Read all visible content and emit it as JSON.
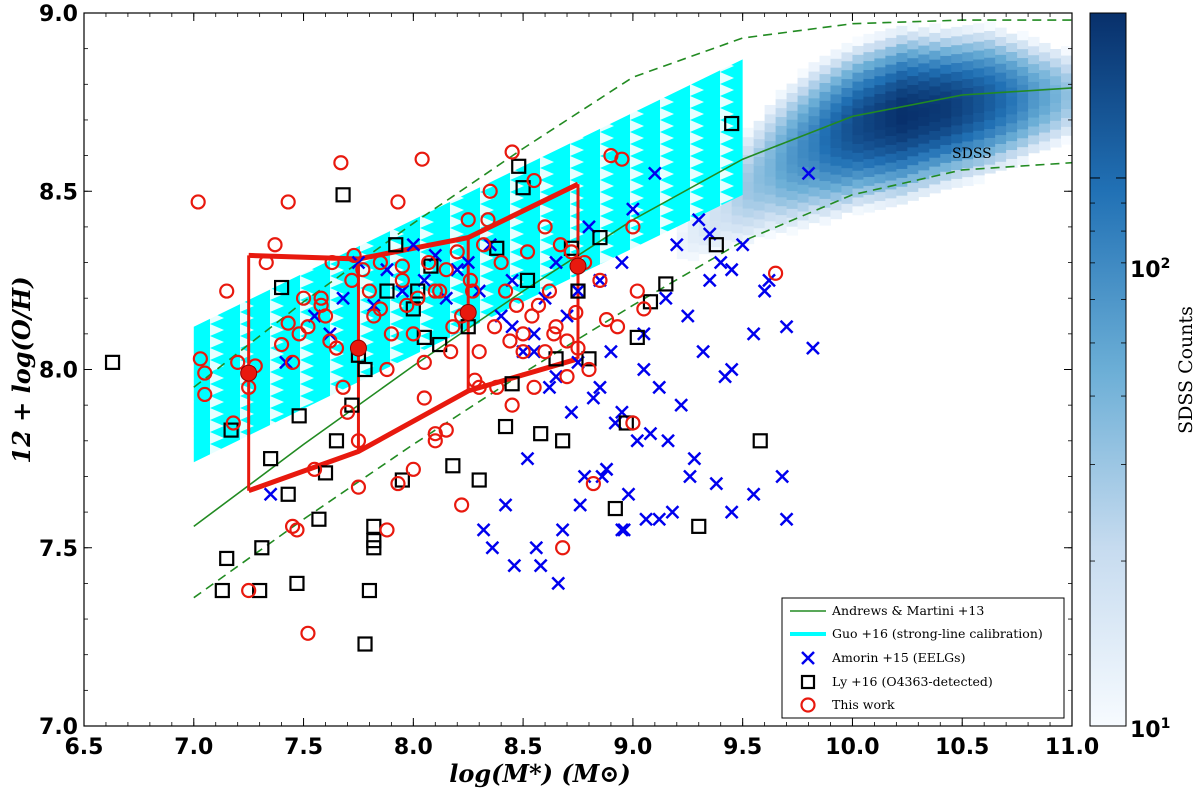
{
  "chart_data": {
    "type": "scatter",
    "xlabel": "log(M*) (M⊙)",
    "ylabel": "12 + log(O/H)",
    "xlim": [
      6.5,
      11.0
    ],
    "ylim": [
      7.0,
      9.0
    ],
    "x_ticks": [
      "6.5",
      "7.0",
      "7.5",
      "8.0",
      "8.5",
      "9.0",
      "9.5",
      "10.0",
      "10.5",
      "11.0"
    ],
    "y_ticks": [
      "7.0",
      "7.5",
      "8.0",
      "8.5",
      "9.0"
    ],
    "annotation": "SDSS",
    "colorbar": {
      "label": "SDSS Counts",
      "scale": "log",
      "range": [
        10,
        200
      ],
      "ticks": [
        {
          "value": 10,
          "base": "10",
          "exp": "1"
        },
        {
          "value": 100,
          "base": "10",
          "exp": "2"
        }
      ],
      "color_low": "#f7fbff",
      "color_high": "#08306b"
    },
    "legend": {
      "placement": "lower-right",
      "entries": [
        {
          "label": "Andrews & Martini +13",
          "marker": "green-line"
        },
        {
          "label": "Guo +16 (strong-line calibration)",
          "marker": "cyan-line"
        },
        {
          "label": "Amorin +15 (EELGs)",
          "marker": "blue-x"
        },
        {
          "label": "Ly +16 (O4363-detected)",
          "marker": "black-square"
        },
        {
          "label": "This work",
          "marker": "red-circle"
        }
      ]
    },
    "colors": {
      "andrews": "#228b22",
      "guo": "#00ffff",
      "amorin": "#0000ee",
      "ly": "#000000",
      "this_work": "#e8190e"
    },
    "andrews_martini_curve": {
      "x": [
        7.0,
        7.5,
        8.0,
        8.5,
        9.0,
        9.5,
        10.0,
        10.5,
        11.0
      ],
      "center": [
        7.56,
        7.79,
        8.01,
        8.22,
        8.42,
        8.59,
        8.71,
        8.77,
        8.79
      ],
      "upper": [
        7.95,
        8.19,
        8.41,
        8.62,
        8.82,
        8.93,
        8.97,
        8.98,
        8.98
      ],
      "lower": [
        7.36,
        7.58,
        7.79,
        7.99,
        8.18,
        8.36,
        8.49,
        8.56,
        8.58
      ]
    },
    "guo_band": {
      "x": [
        7.0,
        9.5
      ],
      "upper": [
        8.12,
        8.87
      ],
      "lower": [
        7.74,
        8.49
      ]
    },
    "sdss_density": {
      "x": [
        9.2,
        9.4,
        9.6,
        9.8,
        10.0,
        10.2,
        10.4,
        10.6,
        10.8,
        11.0
      ],
      "center": [
        8.35,
        8.45,
        8.55,
        8.62,
        8.67,
        8.7,
        8.72,
        8.74,
        8.75,
        8.76
      ],
      "halfwidth": [
        0.12,
        0.13,
        0.14,
        0.14,
        0.13,
        0.13,
        0.12,
        0.12,
        0.11,
        0.1
      ],
      "peak_count": [
        12,
        20,
        40,
        80,
        150,
        200,
        180,
        120,
        60,
        25
      ]
    },
    "binned_this_work": {
      "x": [
        7.25,
        7.75,
        8.25,
        8.75
      ],
      "y": [
        7.99,
        8.06,
        8.16,
        8.29
      ],
      "upper": [
        8.32,
        8.31,
        8.37,
        8.52
      ],
      "lower": [
        7.66,
        7.77,
        7.94,
        8.03
      ]
    },
    "series": [
      {
        "name": "Amorin +15 (EELGs)",
        "marker": "x",
        "x": [
          7.35,
          7.42,
          7.55,
          7.62,
          7.68,
          7.75,
          7.82,
          7.88,
          7.95,
          8.0,
          8.05,
          8.1,
          8.15,
          8.2,
          8.25,
          8.3,
          8.35,
          8.4,
          8.45,
          8.5,
          8.55,
          8.6,
          8.65,
          8.7,
          8.75,
          8.8,
          8.85,
          8.9,
          8.95,
          9.0,
          9.05,
          9.1,
          9.15,
          9.2,
          9.25,
          9.3,
          9.35,
          9.4,
          9.45,
          9.5,
          9.55,
          9.6,
          9.7,
          9.8,
          8.62,
          8.72,
          8.82,
          8.92,
          9.02,
          9.12,
          9.22,
          9.32,
          9.42,
          8.52,
          8.42,
          8.32,
          8.58,
          8.68,
          8.78,
          8.88,
          8.98,
          9.08,
          9.18,
          9.28,
          9.38,
          8.46,
          8.56,
          8.66,
          8.76,
          8.86,
          8.96,
          9.06,
          9.16,
          9.26,
          8.36,
          8.45,
          8.55,
          8.65,
          8.75,
          8.85,
          8.95,
          9.05,
          9.35,
          9.45,
          9.62,
          9.68
        ],
        "y": [
          7.65,
          8.02,
          8.15,
          8.1,
          8.2,
          8.3,
          8.18,
          8.28,
          8.22,
          8.35,
          8.25,
          8.32,
          8.2,
          8.28,
          8.3,
          8.22,
          8.35,
          8.15,
          8.25,
          8.05,
          8.1,
          8.2,
          8.3,
          8.15,
          8.22,
          8.4,
          8.25,
          8.05,
          8.3,
          8.45,
          8.1,
          8.55,
          8.2,
          8.35,
          8.15,
          8.42,
          8.25,
          8.3,
          8.0,
          8.35,
          8.1,
          8.22,
          8.12,
          8.55,
          7.95,
          7.88,
          7.92,
          7.85,
          7.8,
          7.95,
          7.9,
          8.05,
          7.98,
          7.75,
          7.62,
          7.55,
          7.45,
          7.55,
          7.7,
          7.72,
          7.65,
          7.82,
          7.6,
          7.75,
          7.68,
          7.45,
          7.5,
          7.4,
          7.62,
          7.7,
          7.55,
          7.58,
          7.8,
          7.7,
          7.5,
          8.12,
          8.05,
          7.98,
          8.02,
          7.95,
          7.88,
          8.0,
          8.38,
          8.28,
          8.25,
          7.7
        ],
        "x2": [
          9.82,
          9.7,
          9.12,
          8.95,
          9.45,
          9.55
        ],
        "y2": [
          8.06,
          7.58,
          7.58,
          7.55,
          7.6,
          7.65
        ]
      },
      {
        "name": "Ly +16 (O4363-detected)",
        "marker": "square",
        "x": [
          6.63,
          7.13,
          7.15,
          7.17,
          7.3,
          7.31,
          7.35,
          7.4,
          7.43,
          7.47,
          7.48,
          7.57,
          7.6,
          7.65,
          7.68,
          7.72,
          7.75,
          7.78,
          7.8,
          7.82,
          7.82,
          7.82,
          7.88,
          7.92,
          7.95,
          8.0,
          8.02,
          8.05,
          8.08,
          8.12,
          8.18,
          8.25,
          8.3,
          8.38,
          8.42,
          8.45,
          8.48,
          8.52,
          8.58,
          8.65,
          8.68,
          8.72,
          8.75,
          8.8,
          8.85,
          8.92,
          8.97,
          9.02,
          9.08,
          9.15,
          9.3,
          9.38,
          9.45,
          9.58,
          8.5,
          7.78
        ],
        "y": [
          8.02,
          7.38,
          7.47,
          7.83,
          7.38,
          7.5,
          7.75,
          8.23,
          7.65,
          7.4,
          7.87,
          7.58,
          7.71,
          7.8,
          8.49,
          7.9,
          8.04,
          8.0,
          7.38,
          7.5,
          7.52,
          7.56,
          8.22,
          8.35,
          7.69,
          8.17,
          8.22,
          8.09,
          8.29,
          8.07,
          7.73,
          8.12,
          7.69,
          8.34,
          7.84,
          7.96,
          8.57,
          8.25,
          7.82,
          8.03,
          7.8,
          8.34,
          8.22,
          8.03,
          8.37,
          7.61,
          7.85,
          8.09,
          8.19,
          8.24,
          7.56,
          8.35,
          8.69,
          7.8,
          8.51,
          7.23
        ]
      },
      {
        "name": "This work",
        "marker": "circle",
        "x": [
          7.02,
          7.03,
          7.05,
          7.15,
          7.2,
          7.25,
          7.28,
          7.33,
          7.37,
          7.4,
          7.43,
          7.45,
          7.47,
          7.48,
          7.5,
          7.52,
          7.55,
          7.58,
          7.6,
          7.62,
          7.65,
          7.67,
          7.7,
          7.72,
          7.73,
          7.75,
          7.77,
          7.8,
          7.82,
          7.85,
          7.88,
          7.9,
          7.93,
          7.95,
          7.97,
          8.0,
          8.02,
          8.04,
          8.05,
          8.07,
          8.1,
          8.12,
          8.15,
          8.17,
          8.2,
          8.22,
          8.25,
          8.27,
          8.3,
          8.32,
          8.35,
          8.37,
          8.4,
          8.42,
          8.45,
          8.47,
          8.5,
          8.52,
          8.55,
          8.57,
          8.6,
          8.62,
          8.65,
          8.67,
          8.7,
          8.72,
          8.75,
          8.78,
          8.8,
          8.85,
          8.9,
          8.95,
          9.0,
          9.02,
          9.05,
          7.25,
          7.45,
          7.52,
          7.75,
          7.88,
          8.0,
          8.1,
          8.22,
          8.3,
          8.45,
          8.55,
          8.68,
          8.82,
          9.65,
          9.0,
          7.05,
          7.18,
          7.43,
          7.68,
          7.93,
          8.05,
          8.15,
          8.28,
          8.38,
          8.5,
          8.6,
          8.7,
          8.88,
          8.93,
          7.58,
          7.63,
          7.85,
          7.95,
          8.1,
          8.18,
          8.26,
          8.34,
          8.44,
          8.54,
          8.64,
          8.74
        ],
        "y": [
          8.47,
          8.03,
          7.99,
          8.22,
          8.02,
          7.95,
          8.01,
          8.3,
          8.35,
          8.07,
          8.47,
          8.02,
          7.55,
          8.1,
          8.2,
          8.12,
          7.72,
          8.18,
          8.15,
          8.08,
          8.06,
          8.58,
          7.88,
          8.25,
          8.32,
          7.8,
          8.28,
          8.22,
          8.15,
          8.3,
          8.0,
          8.1,
          8.47,
          8.25,
          8.18,
          8.1,
          8.2,
          8.59,
          8.02,
          8.3,
          7.82,
          8.22,
          8.28,
          8.05,
          8.33,
          8.15,
          8.42,
          8.22,
          8.05,
          8.35,
          8.5,
          8.12,
          8.3,
          8.22,
          8.61,
          8.18,
          8.1,
          8.33,
          8.53,
          8.18,
          8.4,
          8.22,
          8.12,
          8.35,
          8.08,
          8.33,
          8.06,
          8.3,
          8.0,
          8.25,
          8.6,
          8.59,
          8.4,
          8.22,
          8.17,
          7.38,
          7.56,
          7.26,
          7.67,
          7.55,
          7.72,
          7.8,
          7.62,
          7.95,
          7.9,
          7.95,
          7.5,
          7.68,
          8.27,
          7.85,
          7.93,
          7.85,
          8.13,
          7.95,
          7.68,
          7.92,
          7.83,
          7.97,
          7.95,
          8.05,
          8.05,
          7.98,
          8.14,
          8.12,
          8.2,
          8.3,
          8.17,
          8.29,
          8.22,
          8.12,
          8.25,
          8.42,
          8.08,
          8.15,
          8.1,
          8.16
        ]
      }
    ]
  }
}
